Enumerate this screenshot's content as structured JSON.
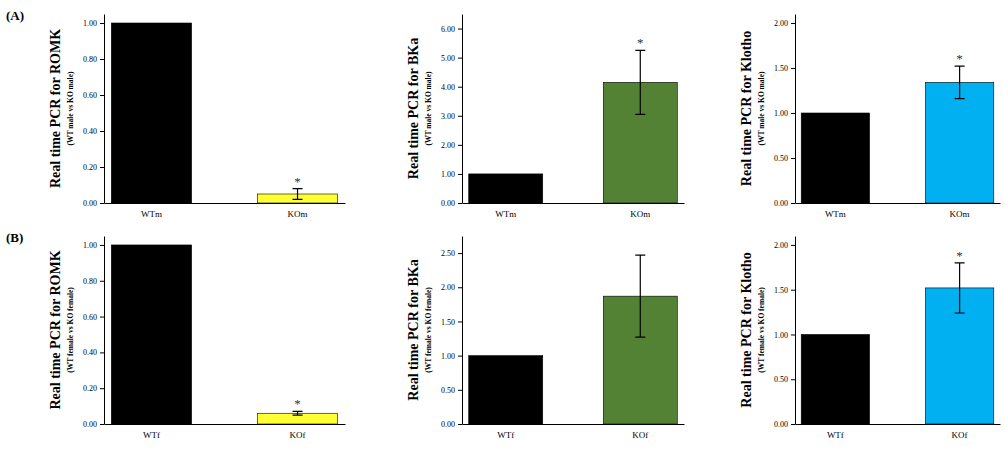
{
  "panel_labels": [
    "(A)",
    "(B)"
  ],
  "chart_data": [
    {
      "type": "bar",
      "ylabel": "Real time PCR for ROMK",
      "ylabel_note": "(WT male vs KO male)",
      "categories": [
        "WTm",
        "KOm"
      ],
      "values": [
        1.0,
        0.05
      ],
      "errors": [
        null,
        0.03
      ],
      "colors": [
        "#000000",
        "#ffff33"
      ],
      "ylim": [
        0,
        1.05
      ],
      "yticks": [
        {
          "value": 0,
          "label": "0.00"
        },
        {
          "value": 0.2,
          "label": "0.20"
        },
        {
          "value": 0.4,
          "label": "0.40"
        },
        {
          "value": 0.6,
          "label": "0.60"
        },
        {
          "value": 0.8,
          "label": "0.80"
        },
        {
          "value": 1.0,
          "label": "1.00"
        }
      ],
      "annotations": [
        {
          "text": "*",
          "category": "KOm"
        }
      ]
    },
    {
      "type": "bar",
      "ylabel": "Real time PCR for BKa",
      "ylabel_note": "(WT male vs KO male)",
      "categories": [
        "WTm",
        "KOm"
      ],
      "values": [
        1.0,
        4.15
      ],
      "errors": [
        null,
        1.1
      ],
      "colors": [
        "#000000",
        "#548235"
      ],
      "ylim": [
        0,
        6.5
      ],
      "yticks": [
        {
          "value": 0,
          "label": "0.00"
        },
        {
          "value": 1,
          "label": "1.00"
        },
        {
          "value": 2,
          "label": "2.00"
        },
        {
          "value": 3,
          "label": "3.00"
        },
        {
          "value": 4,
          "label": "4.00"
        },
        {
          "value": 5,
          "label": "5.00"
        },
        {
          "value": 6,
          "label": "6.00"
        }
      ],
      "annotations": [
        {
          "text": "*",
          "category": "KOm"
        }
      ]
    },
    {
      "type": "bar",
      "ylabel": "Real time PCR for Klotho",
      "ylabel_note": "(WT male vs KO male)",
      "categories": [
        "WTm",
        "KOm"
      ],
      "values": [
        1.0,
        1.34
      ],
      "errors": [
        null,
        0.18
      ],
      "colors": [
        "#000000",
        "#00b0f0"
      ],
      "ylim": [
        0,
        2.1
      ],
      "yticks": [
        {
          "value": 0,
          "label": "0.00"
        },
        {
          "value": 0.5,
          "label": "0.50"
        },
        {
          "value": 1,
          "label": "1.00"
        },
        {
          "value": 1.5,
          "label": "1.50"
        },
        {
          "value": 2,
          "label": "2.00"
        }
      ],
      "annotations": [
        {
          "text": "*",
          "category": "KOm"
        }
      ]
    },
    {
      "type": "bar",
      "ylabel": "Real time PCR for ROMK",
      "ylabel_note": "(WT female vs KO female)",
      "categories": [
        "WTf",
        "KOf"
      ],
      "values": [
        1.0,
        0.06
      ],
      "errors": [
        null,
        0.01
      ],
      "colors": [
        "#000000",
        "#ffff33"
      ],
      "ylim": [
        0,
        1.05
      ],
      "yticks": [
        {
          "value": 0,
          "label": "0.00"
        },
        {
          "value": 0.2,
          "label": "0.20"
        },
        {
          "value": 0.4,
          "label": "0.40"
        },
        {
          "value": 0.6,
          "label": "0.60"
        },
        {
          "value": 0.8,
          "label": "0.80"
        },
        {
          "value": 1.0,
          "label": "1.00"
        }
      ],
      "annotations": [
        {
          "text": "*",
          "category": "KOf"
        }
      ]
    },
    {
      "type": "bar",
      "ylabel": "Real time PCR for BKa",
      "ylabel_note": "(WT female vs KO female)",
      "categories": [
        "WTf",
        "KOf"
      ],
      "values": [
        1.0,
        1.87
      ],
      "errors": [
        null,
        0.6
      ],
      "colors": [
        "#000000",
        "#548235"
      ],
      "ylim": [
        0,
        2.75
      ],
      "yticks": [
        {
          "value": 0,
          "label": "0.00"
        },
        {
          "value": 0.5,
          "label": "0.50"
        },
        {
          "value": 1,
          "label": "1.00"
        },
        {
          "value": 1.5,
          "label": "1.50"
        },
        {
          "value": 2,
          "label": "2.00"
        },
        {
          "value": 2.5,
          "label": "2.50"
        }
      ]
    },
    {
      "type": "bar",
      "ylabel": "Real time PCR for Klotho",
      "ylabel_note": "(WT female vs KO female)",
      "categories": [
        "WTf",
        "KOf"
      ],
      "values": [
        1.0,
        1.52
      ],
      "errors": [
        null,
        0.28
      ],
      "colors": [
        "#000000",
        "#00b0f0"
      ],
      "ylim": [
        0,
        2.1
      ],
      "yticks": [
        {
          "value": 0,
          "label": "0.00"
        },
        {
          "value": 0.5,
          "label": "0.50"
        },
        {
          "value": 1,
          "label": "1.00"
        },
        {
          "value": 1.5,
          "label": "1.50"
        },
        {
          "value": 2,
          "label": "2.00"
        }
      ],
      "annotations": [
        {
          "text": "*",
          "category": "KOf"
        }
      ]
    }
  ]
}
